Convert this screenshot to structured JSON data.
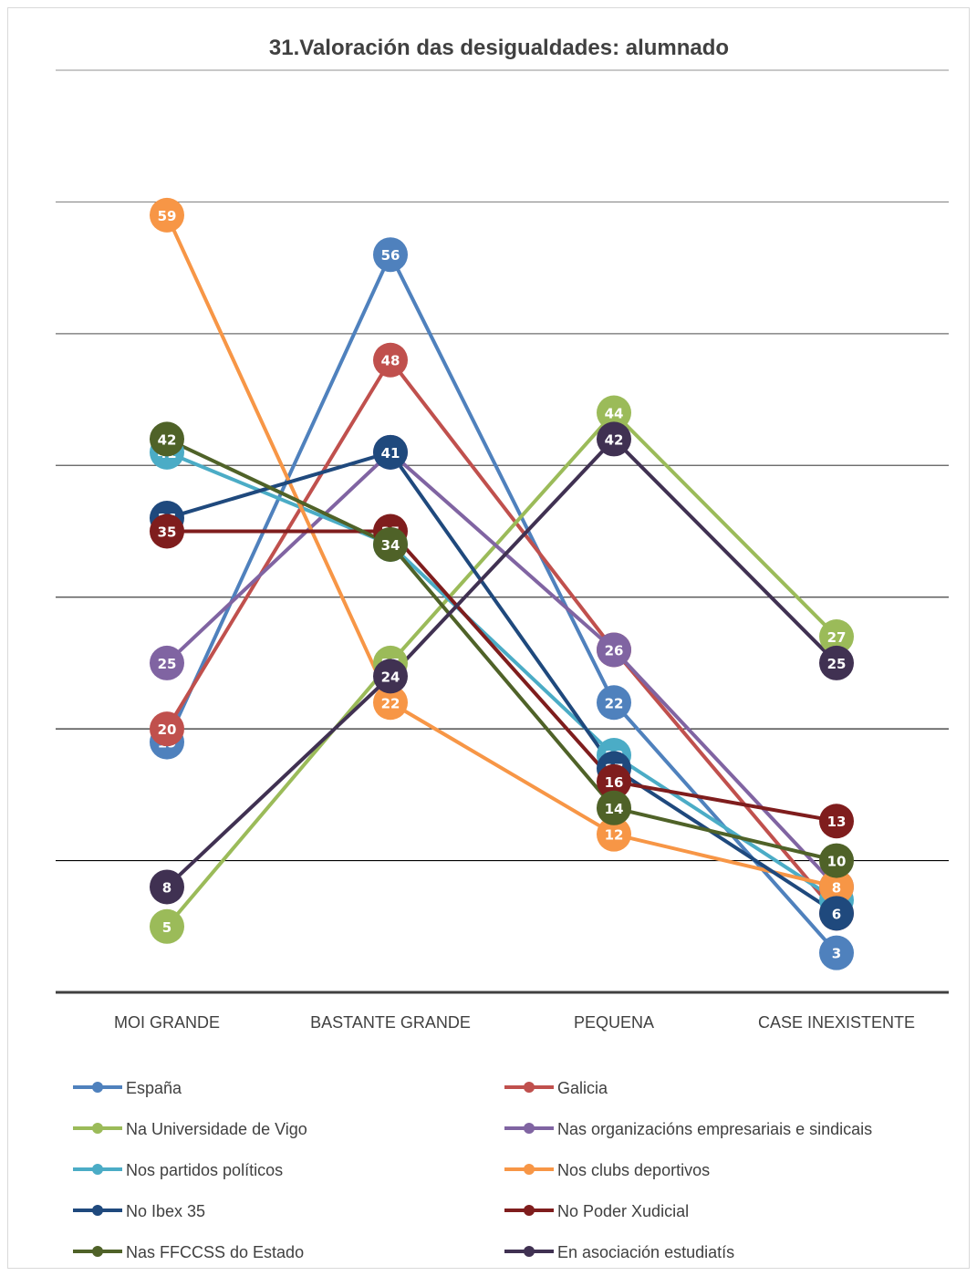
{
  "chart_data": {
    "type": "line",
    "title": "31.Valoración das desigualdades: alumnado",
    "xlabel": "",
    "ylabel": "",
    "categories": [
      "MOI GRANDE",
      "BASTANTE GRANDE",
      "PEQUENA",
      "CASE INEXISTENTE"
    ],
    "ylim": [
      0,
      70
    ],
    "grid": true,
    "legend_position": "bottom",
    "series": [
      {
        "name": "España",
        "color": "#4f81bd",
        "values": [
          19,
          56,
          22,
          3
        ]
      },
      {
        "name": "Galicia",
        "color": "#c0504d",
        "values": [
          20,
          48,
          26,
          6
        ]
      },
      {
        "name": "Na Universidade de Vigo",
        "color": "#9bbb59",
        "values": [
          5,
          25,
          44,
          27
        ]
      },
      {
        "name": "Nas organizacións empresariais e sindicais",
        "color": "#8064a2",
        "values": [
          25,
          41,
          26,
          8
        ]
      },
      {
        "name": "Nos partidos políticos",
        "color": "#4bacc6",
        "values": [
          41,
          34,
          18,
          7
        ]
      },
      {
        "name": "Nos clubs deportivos",
        "color": "#f79646",
        "values": [
          59,
          22,
          12,
          8
        ]
      },
      {
        "name": "No Ibex 35",
        "color": "#1f497d",
        "values": [
          36,
          41,
          17,
          6
        ]
      },
      {
        "name": "No Poder Xudicial",
        "color": "#7f1d1d",
        "values": [
          35,
          35,
          16,
          13
        ]
      },
      {
        "name": "Nas FFCCSS do Estado",
        "color": "#4f6228",
        "values": [
          42,
          34,
          14,
          10
        ]
      },
      {
        "name": "En asociación estudiatís",
        "color": "#403152",
        "values": [
          8,
          24,
          42,
          25
        ]
      }
    ]
  }
}
